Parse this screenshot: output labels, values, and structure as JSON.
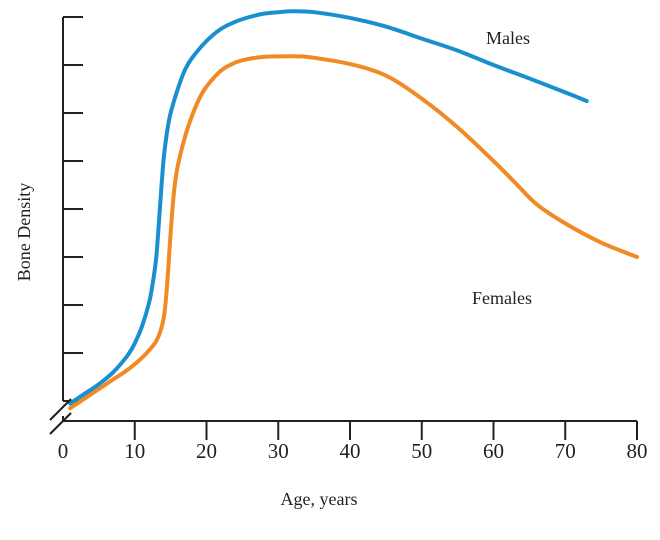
{
  "chart_data": {
    "type": "line",
    "title": "",
    "xlabel": "Age, years",
    "ylabel": "Bone Density",
    "xlim": [
      0,
      80
    ],
    "ylim": [
      0,
      8
    ],
    "y_axis_break": true,
    "grid": false,
    "legend": "inline labels",
    "x_ticks": [
      0,
      10,
      20,
      30,
      40,
      50,
      60,
      70,
      80
    ],
    "x_tick_labels": [
      "0",
      "10",
      "20",
      "30",
      "40",
      "50",
      "60",
      "70",
      "80"
    ],
    "y_ticks": [
      0,
      1,
      2,
      3,
      4,
      5,
      6,
      7,
      8
    ],
    "series": [
      {
        "name": "Males",
        "color": "#1a8fd0",
        "x": [
          1,
          3,
          5,
          7,
          9,
          10,
          11,
          12,
          12.5,
          13,
          13.5,
          14,
          14.5,
          15,
          16,
          17,
          18,
          20,
          22,
          24,
          26,
          28,
          30,
          32,
          35,
          40,
          45,
          50,
          55,
          60,
          65,
          70,
          73
        ],
        "y": [
          -0.05,
          0.15,
          0.35,
          0.6,
          0.95,
          1.2,
          1.55,
          2.05,
          2.45,
          3.0,
          4.0,
          5.0,
          5.6,
          6.0,
          6.5,
          6.9,
          7.15,
          7.5,
          7.75,
          7.9,
          8.0,
          8.07,
          8.1,
          8.12,
          8.1,
          7.98,
          7.8,
          7.55,
          7.3,
          7.0,
          6.72,
          6.43,
          6.25
        ]
      },
      {
        "name": "Females",
        "color": "#f08a24",
        "x": [
          1,
          3,
          5,
          7,
          9,
          11,
          13,
          14,
          14.5,
          15,
          15.5,
          16,
          17,
          18,
          19,
          20,
          22,
          24,
          26,
          28,
          30,
          33,
          35,
          40,
          45,
          50,
          55,
          60,
          63,
          66,
          70,
          75,
          80
        ],
        "y": [
          -0.15,
          0.05,
          0.25,
          0.45,
          0.65,
          0.9,
          1.25,
          1.7,
          2.4,
          3.5,
          4.4,
          4.9,
          5.5,
          5.95,
          6.3,
          6.55,
          6.88,
          7.05,
          7.13,
          7.17,
          7.18,
          7.18,
          7.15,
          7.02,
          6.78,
          6.3,
          5.7,
          5.0,
          4.55,
          4.1,
          3.7,
          3.3,
          3.0
        ]
      }
    ]
  }
}
